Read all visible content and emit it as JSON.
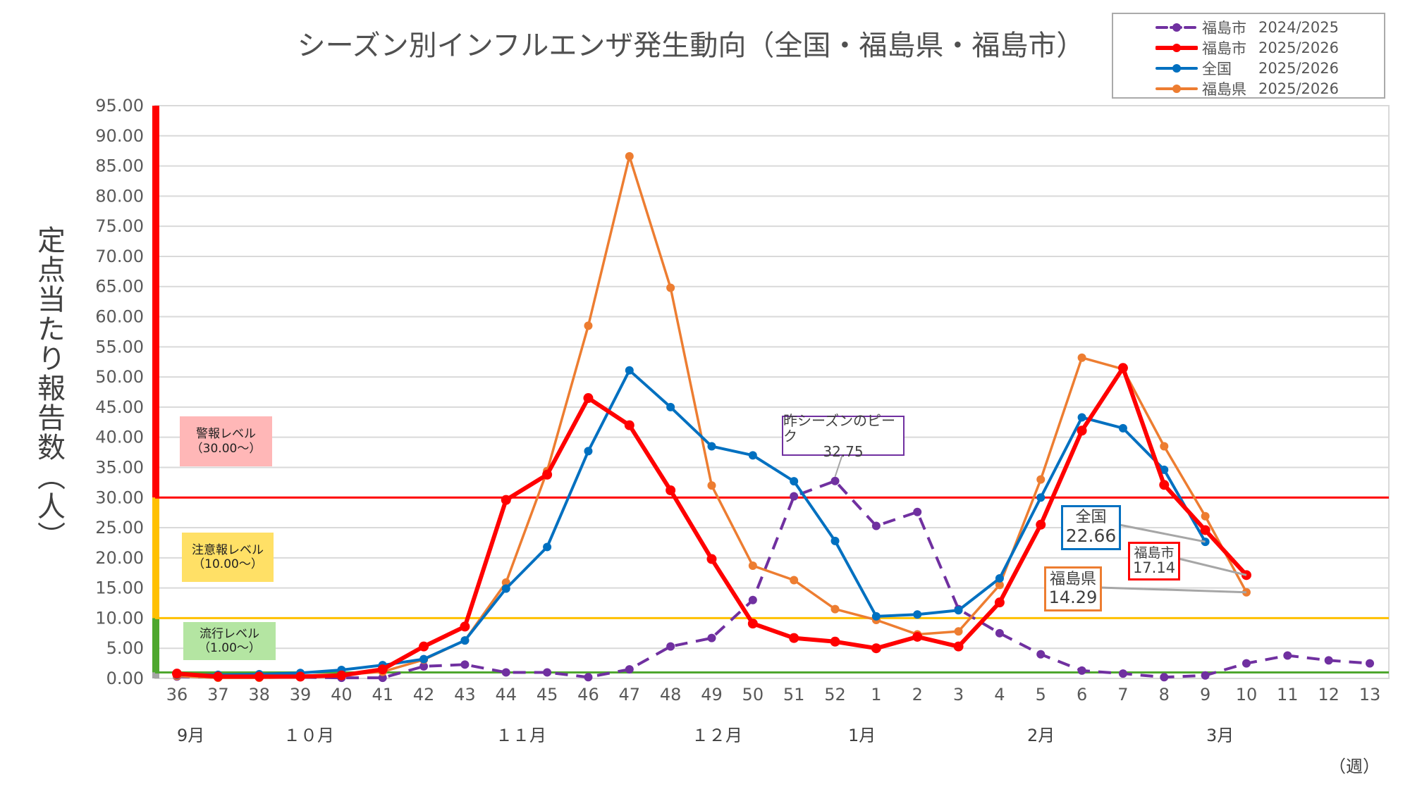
{
  "chart_data": {
    "type": "line",
    "title": "シーズン別インフルエンザ発生動向（全国・福島県・福島市）",
    "ylabel": "定点当たり報告数（人）",
    "xlabel_unit": "（週）",
    "ylim": [
      0,
      95
    ],
    "ytick_step": 5,
    "yticks": [
      "0.00",
      "5.00",
      "10.00",
      "15.00",
      "20.00",
      "25.00",
      "30.00",
      "35.00",
      "40.00",
      "45.00",
      "50.00",
      "55.00",
      "60.00",
      "65.00",
      "70.00",
      "75.00",
      "80.00",
      "85.00",
      "90.00",
      "95.00"
    ],
    "grid": true,
    "legend_placement": "top-right",
    "categories": [
      "36",
      "37",
      "38",
      "39",
      "40",
      "41",
      "42",
      "43",
      "44",
      "45",
      "46",
      "47",
      "48",
      "49",
      "50",
      "51",
      "52",
      "1",
      "2",
      "3",
      "4",
      "5",
      "6",
      "7",
      "8",
      "9",
      "10",
      "11",
      "12",
      "13"
    ],
    "months": [
      {
        "label": "9月",
        "week": "36"
      },
      {
        "label": "１０月",
        "week": "38.5"
      },
      {
        "label": "１１月",
        "week": "44"
      },
      {
        "label": "１２月",
        "week": "48.5"
      },
      {
        "label": "1月",
        "week": "1"
      },
      {
        "label": "2月",
        "week": "5"
      },
      {
        "label": "3月",
        "week": "9"
      }
    ],
    "series": [
      {
        "name": "福島市",
        "season": "2024/2025",
        "color": "#7030A0",
        "style": "dashed",
        "values": [
          0.3,
          0.2,
          0.3,
          0.2,
          0.1,
          0.1,
          2.0,
          2.3,
          1.0,
          1.0,
          0.2,
          1.5,
          5.3,
          6.7,
          13.0,
          30.2,
          32.75,
          25.3,
          27.6,
          11.5,
          7.5,
          4.0,
          1.3,
          0.8,
          0.2,
          0.5,
          2.5,
          3.8,
          3.0,
          2.5
        ]
      },
      {
        "name": "福島市",
        "season": "2025/2026",
        "color": "#FF0000",
        "style": "solid-thick",
        "values": [
          0.8,
          0.3,
          0.3,
          0.3,
          0.5,
          1.5,
          5.3,
          8.6,
          29.6,
          33.8,
          46.5,
          42.0,
          31.2,
          19.8,
          9.1,
          6.7,
          6.1,
          5.0,
          6.9,
          5.3,
          12.6,
          25.5,
          41.1,
          51.5,
          32.1,
          24.6,
          17.14,
          null,
          null,
          null
        ]
      },
      {
        "name": "全国",
        "season": "2025/2026",
        "color": "#0070C0",
        "style": "solid",
        "values": [
          0.6,
          0.6,
          0.7,
          0.9,
          1.4,
          2.2,
          3.2,
          6.3,
          14.9,
          21.8,
          37.7,
          51.1,
          45.0,
          38.5,
          37.0,
          32.7,
          22.8,
          10.3,
          10.6,
          11.3,
          16.6,
          30.0,
          43.3,
          41.5,
          34.6,
          22.66,
          null,
          null,
          null,
          null
        ]
      },
      {
        "name": "福島県",
        "season": "2025/2026",
        "color": "#ED7D31",
        "style": "solid",
        "values": [
          0.4,
          0.1,
          0.1,
          0.2,
          0.6,
          1.1,
          3.1,
          6.3,
          15.9,
          34.4,
          58.5,
          86.6,
          64.8,
          32.0,
          18.7,
          16.3,
          11.5,
          9.7,
          7.3,
          7.8,
          15.5,
          33.0,
          53.2,
          51.3,
          38.5,
          26.9,
          14.29,
          null,
          null,
          null
        ]
      }
    ],
    "thresholds": [
      {
        "label": "警報レベル",
        "range": "（30.00～）",
        "value": 30,
        "color": "#FF0000",
        "box": "#FFB7B7"
      },
      {
        "label": "注意報レベル",
        "range": "（10.00～）",
        "value": 10,
        "color": "#FFC000",
        "box": "#FFE066"
      },
      {
        "label": "流行レベル",
        "range": "（1.00～）",
        "value": 1,
        "color": "#4EA72E",
        "box": "#B4E5A2"
      }
    ],
    "annotations": [
      {
        "label": "昨シーズンのピーク",
        "value": "32.75",
        "color": "#7030A0"
      },
      {
        "label": "全国",
        "value": "22.66",
        "color": "#0070C0"
      },
      {
        "label": "福島市",
        "value": "17.14",
        "color": "#FF0000"
      },
      {
        "label": "福島県",
        "value": "14.29",
        "color": "#ED7D31"
      }
    ]
  }
}
